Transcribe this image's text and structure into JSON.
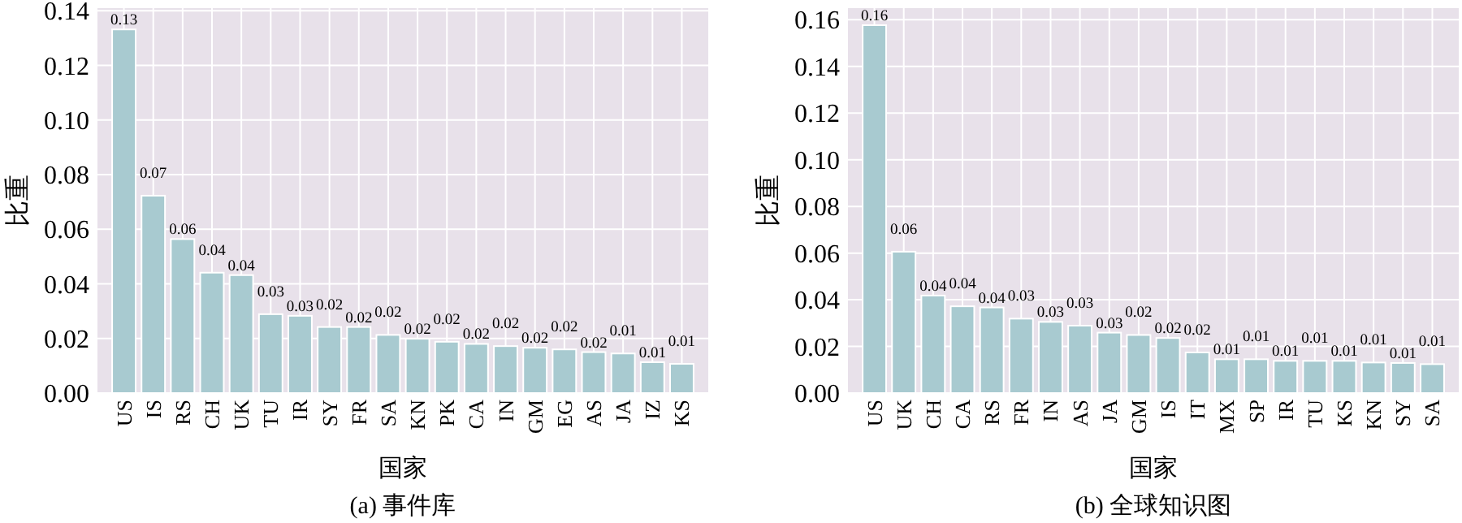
{
  "chart_data": [
    {
      "type": "bar",
      "title": "(a) 事件库",
      "xlabel": "国家",
      "ylabel": "比重",
      "color": "#a8cad0",
      "grid": true,
      "categories": [
        "US",
        "IS",
        "RS",
        "CH",
        "UK",
        "TU",
        "IR",
        "SY",
        "FR",
        "SA",
        "KN",
        "PK",
        "CA",
        "IN",
        "GM",
        "EG",
        "AS",
        "JA",
        "IZ",
        "KS"
      ],
      "values": [
        0.1332,
        0.0723,
        0.0564,
        0.0441,
        0.0432,
        0.0289,
        0.0283,
        0.0242,
        0.0242,
        0.0213,
        0.0199,
        0.0188,
        0.018,
        0.0172,
        0.0166,
        0.016,
        0.015,
        0.0145,
        0.0113,
        0.0107
      ],
      "value_labels": [
        "0.13",
        "0.07",
        "0.06",
        "0.04",
        "0.04",
        "0.03",
        "0.03",
        "0.02",
        "0.02",
        "0.02",
        "0.02",
        "0.02",
        "0.02",
        "0.02",
        "0.02",
        "0.02",
        "0.02",
        "0.01",
        "0.01",
        "0.01"
      ],
      "ylim": [
        0,
        0.141
      ],
      "yticks": [
        {
          "value": 0,
          "label": "0.00"
        },
        {
          "value": 0.02,
          "label": "0.02"
        },
        {
          "value": 0.04,
          "label": "0.04"
        },
        {
          "value": 0.06,
          "label": "0.06"
        },
        {
          "value": 0.08,
          "label": "0.08"
        },
        {
          "value": 0.1,
          "label": "0.10"
        },
        {
          "value": 0.12,
          "label": "0.12"
        },
        {
          "value": 0.14,
          "label": "0.14"
        }
      ]
    },
    {
      "type": "bar",
      "title": "(b) 全球知识图",
      "xlabel": "国家",
      "ylabel": "比重",
      "color": "#a8cad0",
      "grid": true,
      "categories": [
        "US",
        "UK",
        "CH",
        "CA",
        "RS",
        "FR",
        "IN",
        "AS",
        "JA",
        "GM",
        "IS",
        "IT",
        "MX",
        "SP",
        "IR",
        "TU",
        "KS",
        "KN",
        "SY",
        "SA"
      ],
      "values": [
        0.1577,
        0.0606,
        0.0418,
        0.0372,
        0.0367,
        0.0319,
        0.0305,
        0.0289,
        0.0259,
        0.0249,
        0.0236,
        0.0174,
        0.0145,
        0.0145,
        0.0138,
        0.0138,
        0.0138,
        0.0131,
        0.0129,
        0.0124
      ],
      "value_labels": [
        "0.16",
        "0.06",
        "0.04",
        "0.04",
        "0.04",
        "0.03",
        "0.03",
        "0.03",
        "0.03",
        "0.02",
        "0.02",
        "0.02",
        "0.01",
        "0.01",
        "0.01",
        "0.01",
        "0.01",
        "0.01",
        "0.01",
        "0.01"
      ],
      "ylim": [
        0,
        0.165
      ],
      "yticks": [
        {
          "value": 0,
          "label": "0.00"
        },
        {
          "value": 0.02,
          "label": "0.02"
        },
        {
          "value": 0.04,
          "label": "0.04"
        },
        {
          "value": 0.06,
          "label": "0.06"
        },
        {
          "value": 0.08,
          "label": "0.08"
        },
        {
          "value": 0.1,
          "label": "0.10"
        },
        {
          "value": 0.12,
          "label": "0.12"
        },
        {
          "value": 0.14,
          "label": "0.14"
        },
        {
          "value": 0.16,
          "label": "0.16"
        }
      ]
    }
  ]
}
